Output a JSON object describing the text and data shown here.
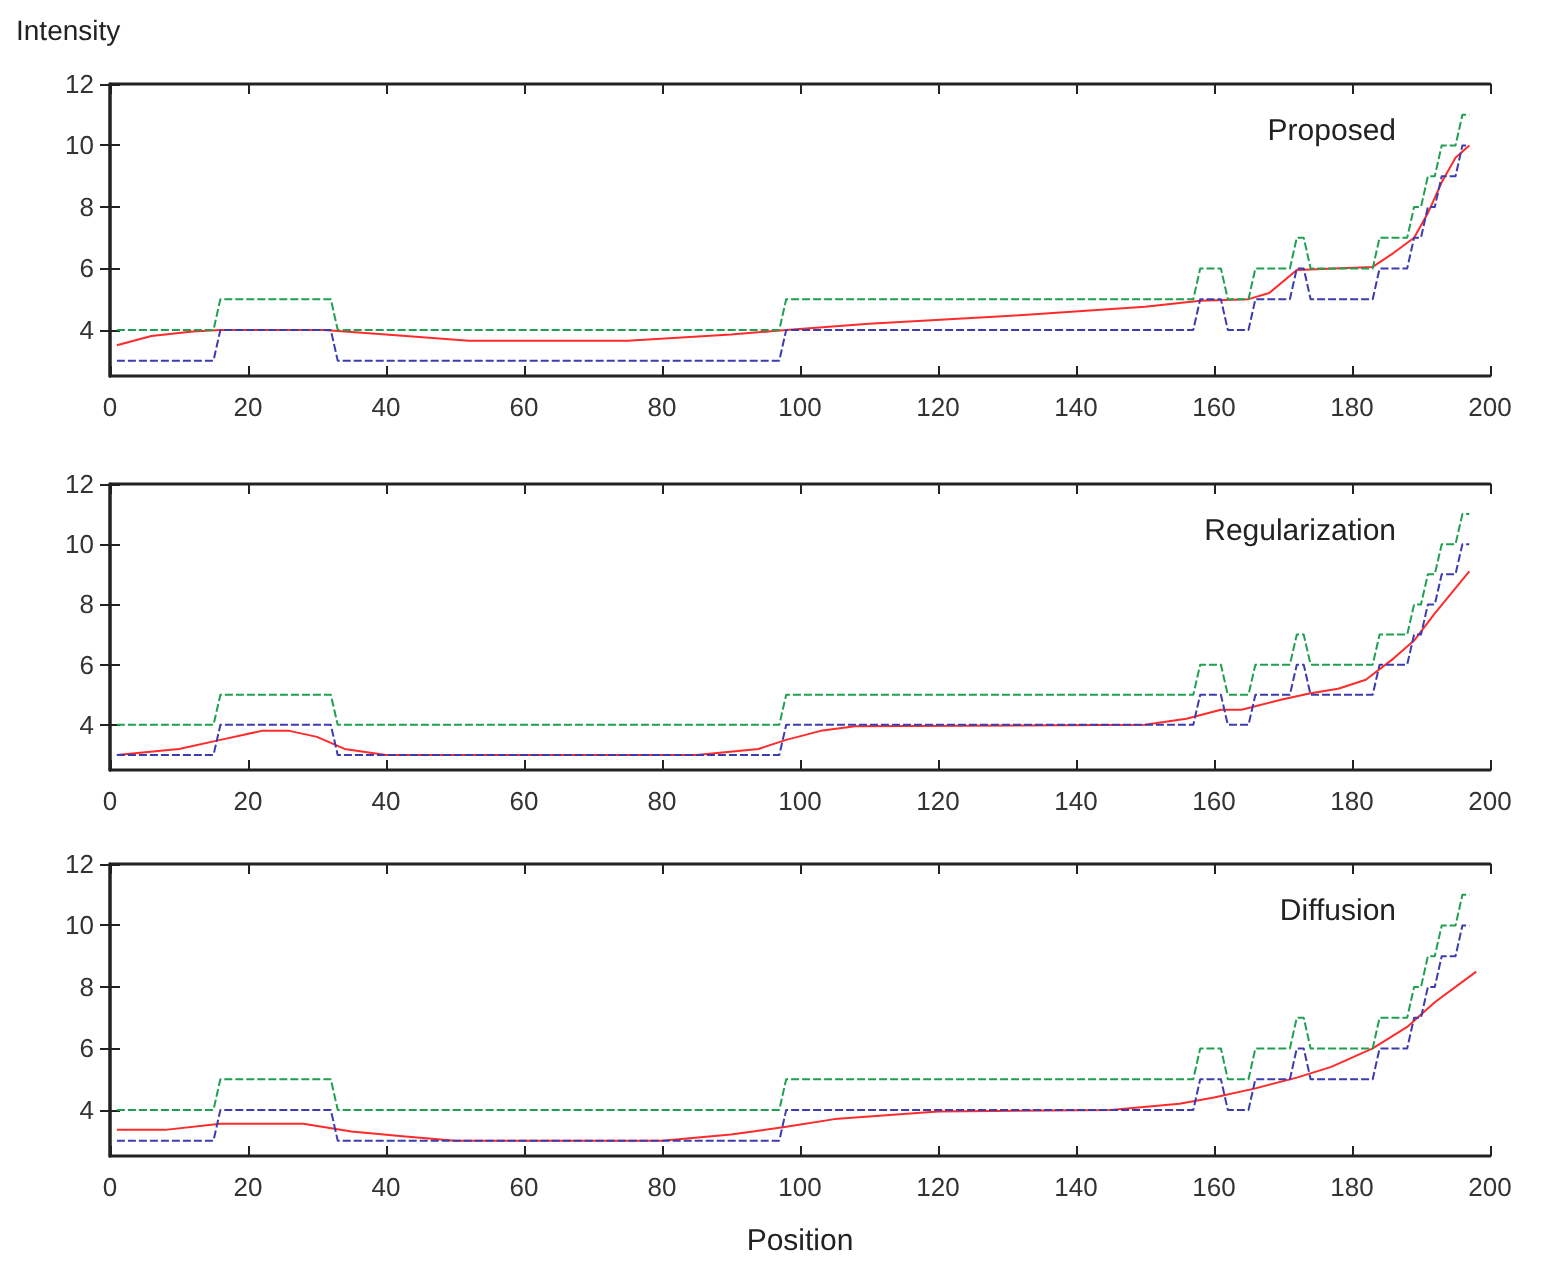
{
  "chart_data": [
    {
      "type": "line",
      "ylabel": "Intensity",
      "annotations": [
        "Proposed"
      ],
      "xlim": [
        0,
        200
      ],
      "xticks": [
        0,
        20,
        40,
        60,
        80,
        100,
        120,
        140,
        160,
        180,
        200
      ],
      "ylim": [
        2.5,
        12
      ],
      "yticks": [
        4,
        6,
        8,
        10,
        12
      ],
      "grid": false,
      "marker": "none",
      "series": [
        {
          "color": "#1fa050",
          "line_style": "dashed",
          "x": [
            1,
            15,
            16,
            32,
            33,
            97,
            98,
            157,
            158,
            161,
            162,
            165,
            166,
            171,
            172,
            173,
            174,
            183,
            184,
            188,
            189,
            190,
            191,
            192,
            193,
            195,
            196,
            197
          ],
          "values": [
            4,
            4,
            5,
            5,
            4,
            4,
            5,
            5,
            6,
            6,
            5,
            5,
            6,
            6,
            7,
            7,
            6,
            6,
            7,
            7,
            8,
            8,
            9,
            9,
            10,
            10,
            11,
            11
          ]
        },
        {
          "color": "#3c3cb0",
          "line_style": "dashed",
          "x": [
            1,
            15,
            16,
            32,
            33,
            97,
            98,
            157,
            158,
            161,
            162,
            165,
            166,
            171,
            172,
            173,
            174,
            183,
            184,
            188,
            189,
            190,
            191,
            192,
            193,
            195,
            196,
            197
          ],
          "values": [
            3,
            3,
            4,
            4,
            3,
            3,
            4,
            4,
            5,
            5,
            4,
            4,
            5,
            5,
            6,
            6,
            5,
            5,
            6,
            6,
            7,
            7,
            8,
            8,
            9,
            9,
            10,
            10
          ]
        },
        {
          "color": "#ff2a2a",
          "line_style": "solid",
          "x": [
            1,
            6,
            12,
            16,
            31,
            40,
            52,
            75,
            90,
            98,
            110,
            130,
            150,
            158,
            165,
            168,
            172,
            183,
            186,
            189,
            191,
            193,
            195,
            197
          ],
          "values": [
            3.5,
            3.8,
            3.95,
            4,
            4,
            3.85,
            3.65,
            3.65,
            3.85,
            4,
            4.2,
            4.45,
            4.75,
            4.95,
            5,
            5.2,
            5.95,
            6.05,
            6.5,
            7,
            7.8,
            8.8,
            9.6,
            10
          ]
        }
      ]
    },
    {
      "type": "line",
      "annotations": [
        "Regularization"
      ],
      "xlim": [
        0,
        200
      ],
      "xticks": [
        0,
        20,
        40,
        60,
        80,
        100,
        120,
        140,
        160,
        180,
        200
      ],
      "ylim": [
        2.5,
        12
      ],
      "yticks": [
        4,
        6,
        8,
        10,
        12
      ],
      "grid": false,
      "marker": "none",
      "series": [
        {
          "color": "#1fa050",
          "line_style": "dashed",
          "x": [
            1,
            15,
            16,
            32,
            33,
            97,
            98,
            157,
            158,
            161,
            162,
            165,
            166,
            171,
            172,
            173,
            174,
            183,
            184,
            188,
            189,
            190,
            191,
            192,
            193,
            195,
            196,
            197
          ],
          "values": [
            4,
            4,
            5,
            5,
            4,
            4,
            5,
            5,
            6,
            6,
            5,
            5,
            6,
            6,
            7,
            7,
            6,
            6,
            7,
            7,
            8,
            8,
            9,
            9,
            10,
            10,
            11,
            11
          ]
        },
        {
          "color": "#3c3cb0",
          "line_style": "dashed",
          "x": [
            1,
            15,
            16,
            32,
            33,
            97,
            98,
            157,
            158,
            161,
            162,
            165,
            166,
            171,
            172,
            173,
            174,
            183,
            184,
            188,
            189,
            190,
            191,
            192,
            193,
            195,
            196,
            197
          ],
          "values": [
            3,
            3,
            4,
            4,
            3,
            3,
            4,
            4,
            5,
            5,
            4,
            4,
            5,
            5,
            6,
            6,
            5,
            5,
            6,
            6,
            7,
            7,
            8,
            8,
            9,
            9,
            10,
            10
          ]
        },
        {
          "color": "#ff2a2a",
          "line_style": "solid",
          "x": [
            1,
            10,
            16,
            22,
            26,
            30,
            34,
            40,
            85,
            94,
            98,
            103,
            108,
            150,
            156,
            161,
            164,
            170,
            174,
            178,
            182,
            186,
            189,
            192,
            197
          ],
          "values": [
            3,
            3.2,
            3.5,
            3.8,
            3.8,
            3.6,
            3.2,
            3,
            3,
            3.2,
            3.5,
            3.8,
            3.95,
            4,
            4.2,
            4.5,
            4.5,
            4.85,
            5.05,
            5.2,
            5.5,
            6.2,
            6.8,
            7.7,
            9.1
          ]
        }
      ]
    },
    {
      "type": "line",
      "xlabel": "Position",
      "annotations": [
        "Diffusion"
      ],
      "xlim": [
        0,
        200
      ],
      "xticks": [
        0,
        20,
        40,
        60,
        80,
        100,
        120,
        140,
        160,
        180,
        200
      ],
      "ylim": [
        2.5,
        12
      ],
      "yticks": [
        4,
        6,
        8,
        10,
        12
      ],
      "grid": false,
      "marker": "none",
      "series": [
        {
          "color": "#1fa050",
          "line_style": "dashed",
          "x": [
            1,
            15,
            16,
            32,
            33,
            97,
            98,
            157,
            158,
            161,
            162,
            165,
            166,
            171,
            172,
            173,
            174,
            183,
            184,
            188,
            189,
            190,
            191,
            192,
            193,
            195,
            196,
            197
          ],
          "values": [
            4,
            4,
            5,
            5,
            4,
            4,
            5,
            5,
            6,
            6,
            5,
            5,
            6,
            6,
            7,
            7,
            6,
            6,
            7,
            7,
            8,
            8,
            9,
            9,
            10,
            10,
            11,
            11
          ]
        },
        {
          "color": "#3c3cb0",
          "line_style": "dashed",
          "x": [
            1,
            15,
            16,
            32,
            33,
            97,
            98,
            157,
            158,
            161,
            162,
            165,
            166,
            171,
            172,
            173,
            174,
            183,
            184,
            188,
            189,
            190,
            191,
            192,
            193,
            195,
            196,
            197
          ],
          "values": [
            3,
            3,
            4,
            4,
            3,
            3,
            4,
            4,
            5,
            5,
            4,
            4,
            5,
            5,
            6,
            6,
            5,
            5,
            6,
            6,
            7,
            7,
            8,
            8,
            9,
            9,
            10,
            10
          ]
        },
        {
          "color": "#ff2a2a",
          "line_style": "solid",
          "x": [
            1,
            8,
            16,
            28,
            35,
            42,
            50,
            80,
            90,
            98,
            105,
            120,
            145,
            155,
            160,
            166,
            172,
            177,
            183,
            188,
            192,
            198
          ],
          "values": [
            3.35,
            3.35,
            3.55,
            3.55,
            3.3,
            3.15,
            3,
            3,
            3.2,
            3.45,
            3.7,
            3.95,
            4,
            4.2,
            4.4,
            4.7,
            5.05,
            5.4,
            6,
            6.7,
            7.5,
            8.5
          ]
        }
      ]
    }
  ]
}
